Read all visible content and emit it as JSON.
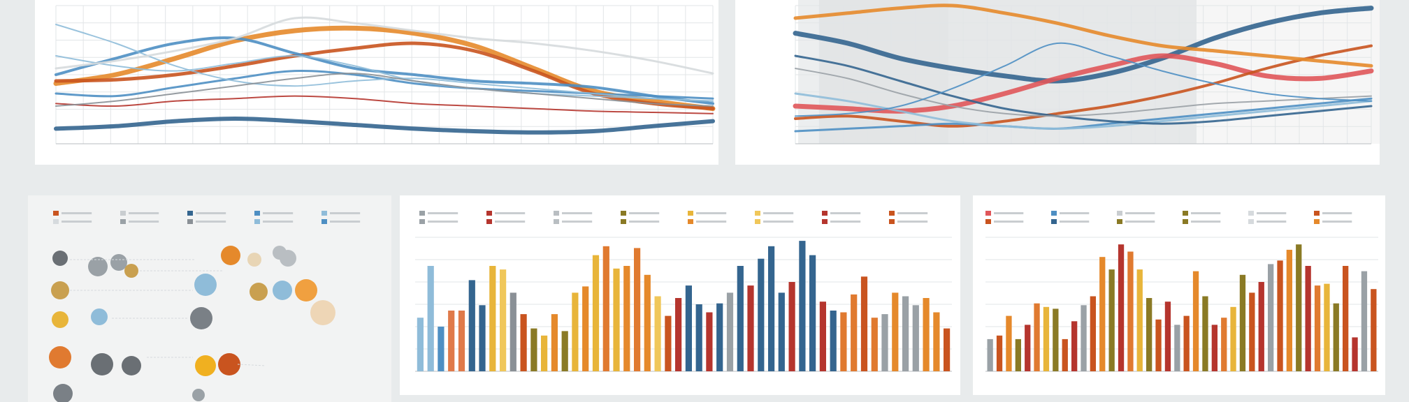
{
  "colors": {
    "background": "#e8ebec",
    "blue_dark": "#34658f",
    "blue_mid": "#4e8fc3",
    "blue_light": "#8fbcd9",
    "orange": "#e5892b",
    "rust": "#c9541f",
    "red": "#b5352e",
    "grey": "#9aa1a6",
    "gold": "#e8b53a",
    "olive": "#8a7a25",
    "coral": "#e0565a"
  },
  "chart_data": [
    {
      "type": "line",
      "panel": "top-left",
      "x": [
        0,
        1,
        2,
        3,
        4,
        5,
        6,
        7,
        8,
        9,
        10,
        11
      ],
      "series": [
        {
          "color": "#e5892b",
          "width": 7,
          "values": [
            48,
            55,
            68,
            82,
            90,
            92,
            88,
            78,
            60,
            42,
            34,
            28
          ]
        },
        {
          "color": "#c9541f",
          "width": 5,
          "values": [
            50,
            51,
            55,
            62,
            70,
            76,
            80,
            74,
            58,
            40,
            32,
            28
          ]
        },
        {
          "color": "#34658f",
          "width": 6,
          "values": [
            12,
            14,
            18,
            20,
            18,
            15,
            12,
            10,
            9,
            10,
            14,
            18
          ]
        },
        {
          "color": "#4e8fc3",
          "width": 4,
          "values": [
            55,
            68,
            80,
            84,
            72,
            60,
            55,
            50,
            48,
            45,
            38,
            32
          ]
        },
        {
          "color": "#4e8fc3",
          "width": 3,
          "values": [
            40,
            38,
            45,
            52,
            58,
            55,
            48,
            44,
            42,
            40,
            38,
            36
          ]
        },
        {
          "color": "#8fbcd9",
          "width": 2,
          "values": [
            95,
            80,
            62,
            50,
            46,
            50,
            52,
            48,
            44,
            40,
            36,
            34
          ]
        },
        {
          "color": "#8fbcd9",
          "width": 2,
          "values": [
            70,
            62,
            58,
            64,
            70,
            62,
            50,
            44,
            40,
            38,
            36,
            34
          ]
        },
        {
          "color": "#b5352e",
          "width": 2,
          "values": [
            32,
            30,
            34,
            36,
            38,
            36,
            32,
            30,
            28,
            26,
            25,
            24
          ]
        },
        {
          "color": "#d6dadd",
          "width": 3,
          "values": [
            60,
            66,
            74,
            84,
            100,
            96,
            90,
            84,
            80,
            74,
            66,
            56
          ]
        },
        {
          "color": "#8a9096",
          "width": 2,
          "values": [
            30,
            34,
            40,
            46,
            52,
            56,
            50,
            44,
            40,
            36,
            32,
            30
          ]
        }
      ]
    },
    {
      "type": "line",
      "panel": "top-right",
      "x": [
        0,
        1,
        2,
        3,
        4,
        5,
        6,
        7,
        8,
        9,
        10,
        11
      ],
      "series": [
        {
          "color": "#34658f",
          "width": 7,
          "values": [
            88,
            80,
            68,
            60,
            54,
            50,
            56,
            68,
            84,
            96,
            104,
            108
          ]
        },
        {
          "color": "#e0565a",
          "width": 7,
          "values": [
            30,
            28,
            26,
            30,
            40,
            52,
            62,
            70,
            64,
            54,
            52,
            58
          ]
        },
        {
          "color": "#c9541f",
          "width": 4,
          "values": [
            20,
            22,
            18,
            14,
            18,
            24,
            30,
            38,
            48,
            60,
            70,
            78
          ]
        },
        {
          "color": "#e5892b",
          "width": 5,
          "values": [
            100,
            104,
            108,
            110,
            104,
            96,
            86,
            78,
            74,
            70,
            66,
            62
          ]
        },
        {
          "color": "#4e8fc3",
          "width": 3,
          "values": [
            10,
            12,
            14,
            16,
            14,
            12,
            16,
            20,
            24,
            28,
            32,
            36
          ]
        },
        {
          "color": "#8fbcd9",
          "width": 3,
          "values": [
            40,
            34,
            26,
            18,
            14,
            12,
            14,
            18,
            22,
            26,
            30,
            34
          ]
        },
        {
          "color": "#34658f",
          "width": 3,
          "values": [
            70,
            62,
            50,
            38,
            28,
            22,
            18,
            16,
            18,
            22,
            26,
            30
          ]
        },
        {
          "color": "#9aa1a6",
          "width": 2,
          "values": [
            60,
            52,
            40,
            30,
            24,
            22,
            24,
            28,
            32,
            34,
            36,
            38
          ]
        },
        {
          "color": "#4e8fc3",
          "width": 2,
          "values": [
            22,
            24,
            30,
            44,
            62,
            80,
            70,
            58,
            48,
            40,
            36,
            34
          ]
        }
      ]
    },
    {
      "type": "bar",
      "panel": "bottom-middle",
      "values": [
        60,
        118,
        50,
        68,
        68,
        102,
        74,
        118,
        114,
        88,
        64,
        48,
        40,
        64,
        45,
        88,
        95,
        130,
        140,
        115,
        118,
        138,
        108,
        84,
        62,
        82,
        96,
        75,
        66,
        76,
        88,
        118,
        96,
        126,
        140,
        88,
        100,
        146,
        130,
        78,
        68,
        66,
        86,
        106,
        60,
        64,
        88,
        84,
        74,
        82,
        66,
        48
      ],
      "colors": [
        "#8fbcd9",
        "#8fbcd9",
        "#4e8fc3",
        "#e07a4a",
        "#e07a4a",
        "#34658f",
        "#34658f",
        "#e8b53a",
        "#f0c75a",
        "#8a9096",
        "#c9541f",
        "#8a7a25",
        "#e8b53a",
        "#e5892b",
        "#8a7a25",
        "#e8b53a",
        "#e5892b",
        "#e8b53a",
        "#e07a30",
        "#e8b53a",
        "#e5892b",
        "#e07a30",
        "#e5892b",
        "#f0c75a",
        "#c9541f",
        "#b5352e",
        "#34658f",
        "#34658f",
        "#b5352e",
        "#34658f",
        "#9aa1a6",
        "#34658f",
        "#b5352e",
        "#34658f",
        "#34658f",
        "#34658f",
        "#b5352e",
        "#34658f",
        "#34658f",
        "#b5352e",
        "#34658f",
        "#e07a30",
        "#e07a30",
        "#c9541f",
        "#e07a30",
        "#9aa1a6",
        "#e5892b",
        "#9aa1a6",
        "#9aa1a6",
        "#e5892b",
        "#e5892b",
        "#c9541f"
      ]
    },
    {
      "type": "bar",
      "panel": "bottom-right",
      "values": [
        36,
        40,
        62,
        36,
        52,
        76,
        72,
        70,
        36,
        56,
        74,
        84,
        128,
        114,
        142,
        134,
        114,
        82,
        58,
        78,
        52,
        62,
        112,
        84,
        52,
        60,
        72,
        108,
        88,
        100,
        120,
        124,
        136,
        142,
        118,
        96,
        98,
        76,
        118,
        38,
        112,
        92
      ]
    }
  ]
}
